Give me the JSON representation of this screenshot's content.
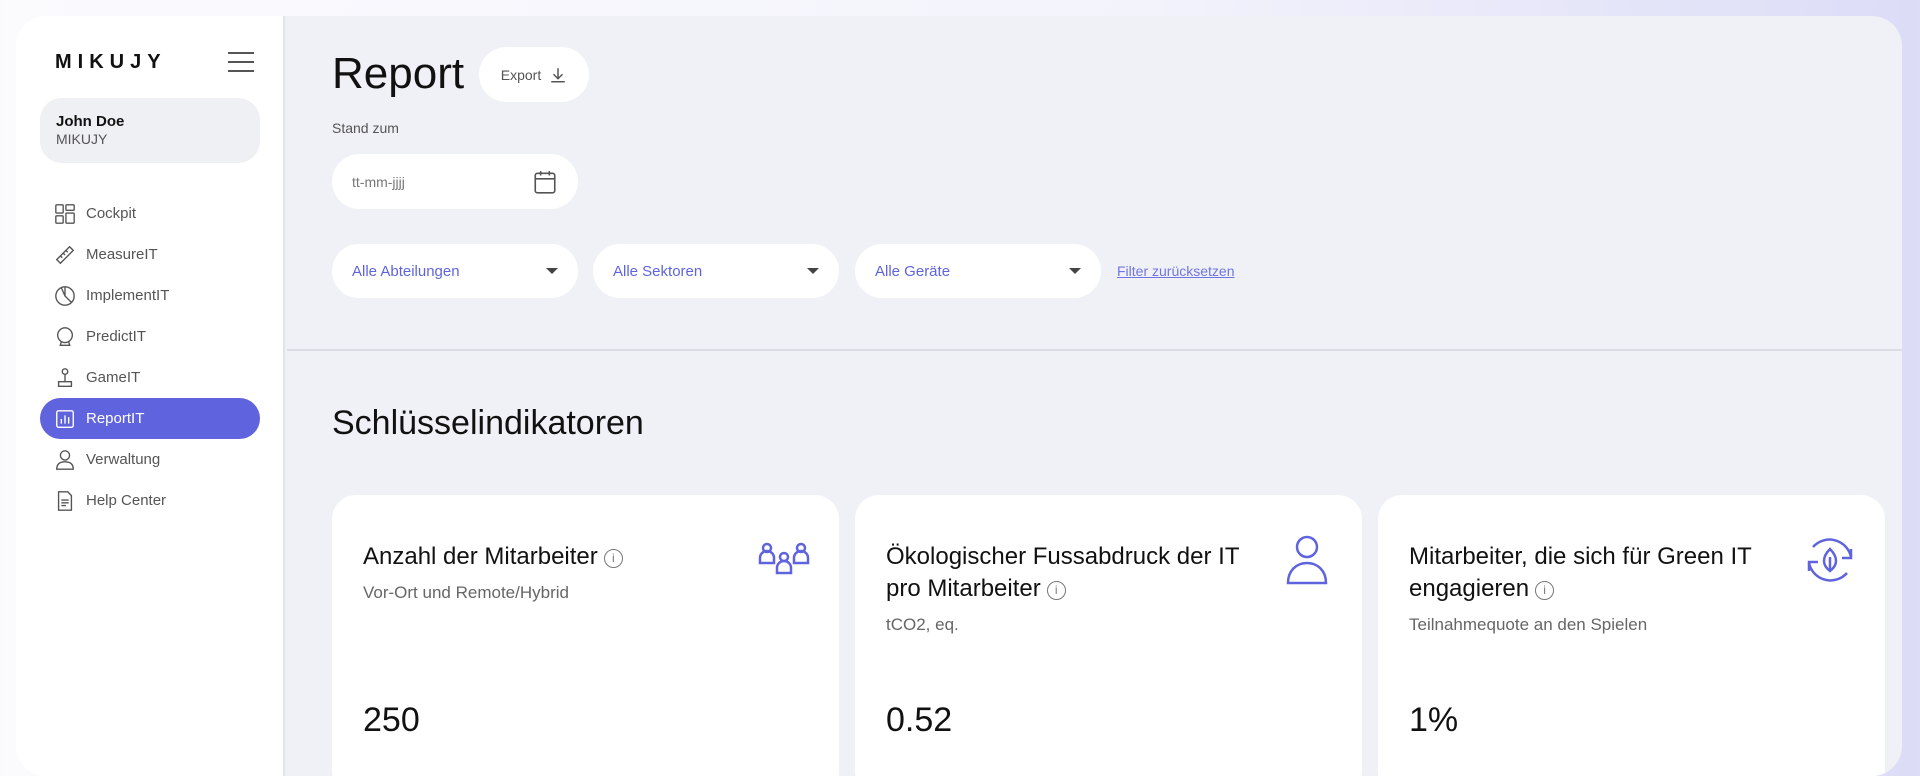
{
  "brand": "MIKUJY",
  "user": {
    "name": "John Doe",
    "org": "MIKUJY"
  },
  "nav": [
    {
      "label": "Cockpit",
      "icon": "grid-icon"
    },
    {
      "label": "MeasureIT",
      "icon": "ruler-icon"
    },
    {
      "label": "ImplementIT",
      "icon": "pie-chart-icon"
    },
    {
      "label": "PredictIT",
      "icon": "crystal-ball-icon"
    },
    {
      "label": "GameIT",
      "icon": "joystick-icon"
    },
    {
      "label": "ReportIT",
      "icon": "bar-chart-icon",
      "active": true
    },
    {
      "label": "Verwaltung",
      "icon": "user-icon"
    },
    {
      "label": "Help Center",
      "icon": "document-icon"
    }
  ],
  "header": {
    "title": "Report",
    "export_label": "Export"
  },
  "filters": {
    "date_label": "Stand zum",
    "date_placeholder": "tt-mm-jjjj",
    "departments": "Alle Abteilungen",
    "sectors": "Alle Sektoren",
    "devices": "Alle Geräte",
    "reset": "Filter zurücksetzen"
  },
  "section_title": "Schlüsselindikatoren",
  "cards": [
    {
      "title": "Anzahl der Mitarbeiter",
      "subtitle": "Vor-Ort und Remote/Hybrid",
      "value": "250",
      "icon": "team-icon"
    },
    {
      "title": "Ökologischer Fussabdruck der IT pro Mitarbeiter",
      "subtitle": "tCO2, eq.",
      "value": "0.52",
      "icon": "person-icon"
    },
    {
      "title": "Mitarbeiter, die sich für Green IT engagieren",
      "subtitle": "Teilnahmequote an den Spielen",
      "value": "1%",
      "icon": "leaf-recycle-icon"
    }
  ],
  "colors": {
    "accent": "#5f64de",
    "background": "#f0f1f6"
  }
}
